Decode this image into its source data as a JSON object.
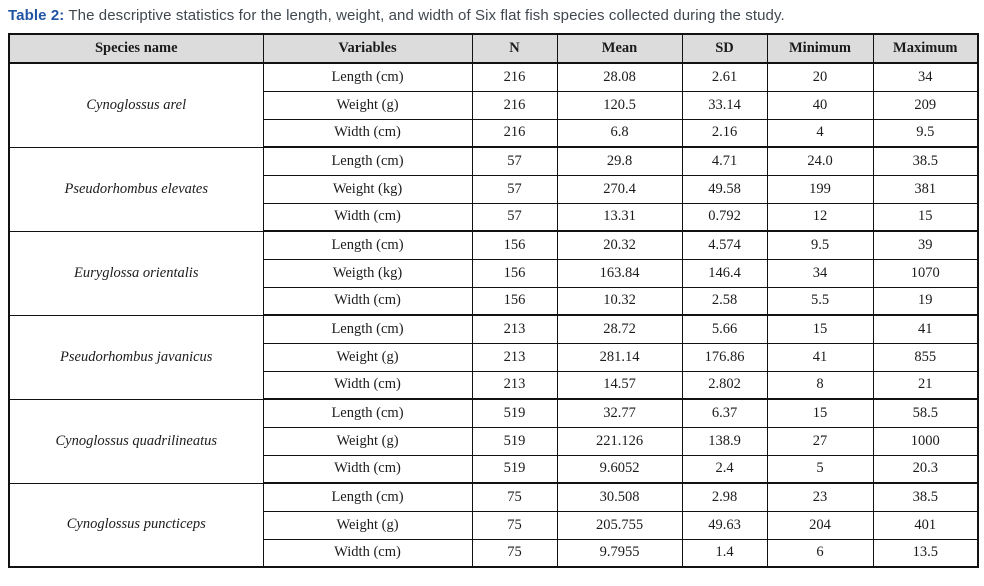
{
  "title": {
    "label": "Table 2:",
    "text": " The descriptive statistics for the length, weight, and width of Six flat fish species collected during the study."
  },
  "table": {
    "headers": [
      "Species name",
      "Variables",
      "N",
      "Mean",
      "SD",
      "Minimum",
      "Maximum"
    ],
    "species": [
      {
        "name": "Cynoglossus arel",
        "rows": [
          {
            "variable": "Length (cm)",
            "n": "216",
            "mean": "28.08",
            "sd": "2.61",
            "min": "20",
            "max": "34"
          },
          {
            "variable": "Weight (g)",
            "n": "216",
            "mean": "120.5",
            "sd": "33.14",
            "min": "40",
            "max": "209"
          },
          {
            "variable": "Width (cm)",
            "n": "216",
            "mean": "6.8",
            "sd": "2.16",
            "min": "4",
            "max": "9.5"
          }
        ]
      },
      {
        "name": "Pseudorhombus elevates",
        "rows": [
          {
            "variable": "Length (cm)",
            "n": "57",
            "mean": "29.8",
            "sd": "4.71",
            "min": "24.0",
            "max": "38.5"
          },
          {
            "variable": "Weight (kg)",
            "n": "57",
            "mean": "270.4",
            "sd": "49.58",
            "min": "199",
            "max": "381"
          },
          {
            "variable": "Width (cm)",
            "n": "57",
            "mean": "13.31",
            "sd": "0.792",
            "min": "12",
            "max": "15"
          }
        ]
      },
      {
        "name": "Euryglossa orientalis",
        "rows": [
          {
            "variable": "Length (cm)",
            "n": "156",
            "mean": "20.32",
            "sd": "4.574",
            "min": "9.5",
            "max": "39"
          },
          {
            "variable": "Weigth (kg)",
            "n": "156",
            "mean": "163.84",
            "sd": "146.4",
            "min": "34",
            "max": "1070"
          },
          {
            "variable": "Width (cm)",
            "n": "156",
            "mean": "10.32",
            "sd": "2.58",
            "min": "5.5",
            "max": "19"
          }
        ]
      },
      {
        "name": "Pseudorhombus javanicus",
        "rows": [
          {
            "variable": "Length (cm)",
            "n": "213",
            "mean": "28.72",
            "sd": "5.66",
            "min": "15",
            "max": "41"
          },
          {
            "variable": "Weight (g)",
            "n": "213",
            "mean": "281.14",
            "sd": "176.86",
            "min": "41",
            "max": "855"
          },
          {
            "variable": "Width (cm)",
            "n": "213",
            "mean": "14.57",
            "sd": "2.802",
            "min": "8",
            "max": "21"
          }
        ]
      },
      {
        "name": "Cynoglossus quadrilineatus",
        "rows": [
          {
            "variable": "Length (cm)",
            "n": "519",
            "mean": "32.77",
            "sd": "6.37",
            "min": "15",
            "max": "58.5"
          },
          {
            "variable": "Weight (g)",
            "n": "519",
            "mean": "221.126",
            "sd": "138.9",
            "min": "27",
            "max": "1000"
          },
          {
            "variable": "Width (cm)",
            "n": "519",
            "mean": "9.6052",
            "sd": "2.4",
            "min": "5",
            "max": "20.3"
          }
        ]
      },
      {
        "name": "Cynoglossus puncticeps",
        "rows": [
          {
            "variable": "Length (cm)",
            "n": "75",
            "mean": "30.508",
            "sd": "2.98",
            "min": "23",
            "max": "38.5"
          },
          {
            "variable": "Weight (g)",
            "n": "75",
            "mean": "205.755",
            "sd": "49.63",
            "min": "204",
            "max": "401"
          },
          {
            "variable": "Width (cm)",
            "n": "75",
            "mean": "9.7955",
            "sd": "1.4",
            "min": "6",
            "max": "13.5"
          }
        ]
      }
    ]
  },
  "colors": {
    "accent_blue": "#2155a4",
    "title_gray": "#40474f",
    "header_background": "#dcdcdc",
    "border_black": "#121212",
    "table_text": "#1b1b1b",
    "page_background": "#ffffff"
  }
}
